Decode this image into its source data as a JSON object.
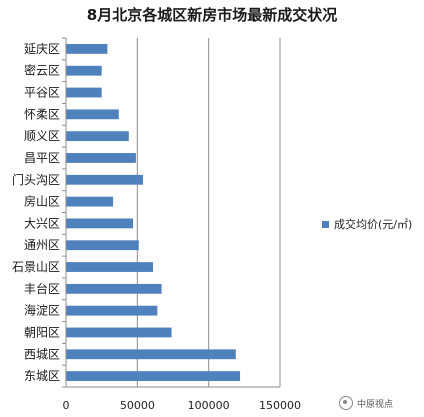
{
  "chart_data": {
    "type": "bar",
    "orientation": "horizontal",
    "title": "8月北京各城区新房市场最新成交状况",
    "categories": [
      "延庆区",
      "密云区",
      "平谷区",
      "怀柔区",
      "顺义区",
      "昌平区",
      "门头沟区",
      "房山区",
      "大兴区",
      "通州区",
      "石景山区",
      "丰台区",
      "海淀区",
      "朝阳区",
      "西城区",
      "东城区"
    ],
    "series": [
      {
        "name": "成交均价(元/㎡)",
        "values": [
          29000,
          25000,
          25000,
          37000,
          44000,
          49000,
          54000,
          33000,
          47000,
          51000,
          61000,
          67000,
          64000,
          74000,
          119000,
          122000
        ],
        "color": "#4f81bd"
      }
    ],
    "xlim": [
      0,
      150000
    ],
    "xticks": [
      0,
      50000,
      100000,
      150000
    ],
    "xtick_labels": [
      "0",
      "50000",
      "100000",
      "150000"
    ],
    "grid": true,
    "legend_position": "right"
  },
  "watermark": {
    "text": "中原视点",
    "icon": "wechat-icon"
  }
}
